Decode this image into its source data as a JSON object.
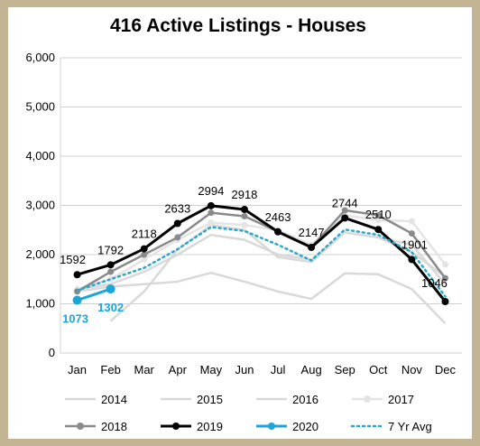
{
  "chart_data": {
    "type": "line",
    "title": "416 Active Listings - Houses",
    "xlabel": "",
    "ylabel": "",
    "categories": [
      "Jan",
      "Feb",
      "Mar",
      "Apr",
      "May",
      "Jun",
      "Jul",
      "Aug",
      "Sep",
      "Oct",
      "Nov",
      "Dec"
    ],
    "ylim": [
      0,
      6000
    ],
    "yticks": [
      0,
      1000,
      2000,
      3000,
      4000,
      5000,
      6000
    ],
    "ytick_labels": [
      "0",
      "1,000",
      "2,000",
      "3,000",
      "4,000",
      "5,000",
      "6,000"
    ],
    "grid": true,
    "legend_position": "bottom",
    "series": [
      {
        "name": "2014",
        "color": "#d9d9d9",
        "marker": false,
        "dotted": false,
        "values": [
          1250,
          1350,
          1400,
          1450,
          1630,
          1450,
          1250,
          1100,
          1620,
          1600,
          1300,
          600
        ]
      },
      {
        "name": "2015",
        "color": "#d9d9d9",
        "marker": false,
        "dotted": false,
        "values": [
          1300,
          1400,
          1650,
          2000,
          2400,
          2300,
          2000,
          1900,
          2450,
          2350,
          2050,
          1550
        ]
      },
      {
        "name": "2016",
        "color": "#d9d9d9",
        "marker": false,
        "dotted": false,
        "values": [
          null,
          650,
          1250,
          2100,
          2600,
          2500,
          1950,
          1850,
          2450,
          2350,
          2200,
          1400
        ]
      },
      {
        "name": "2017",
        "color": "#e4e4e4",
        "marker": true,
        "dotted": false,
        "values": [
          1300,
          1500,
          1900,
          2300,
          2650,
          2600,
          2500,
          2200,
          2800,
          2700,
          2680,
          1800
        ]
      },
      {
        "name": "2018",
        "color": "#8a8a8a",
        "marker": true,
        "dotted": false,
        "values": [
          1250,
          1650,
          2000,
          2350,
          2850,
          2780,
          2470,
          2150,
          2900,
          2800,
          2430,
          1520
        ]
      },
      {
        "name": "2019",
        "color": "#000000",
        "marker": true,
        "dotted": false,
        "values": [
          1592,
          1792,
          2118,
          2633,
          2994,
          2918,
          2463,
          2147,
          2744,
          2510,
          1901,
          1046
        ],
        "labels": [
          "1592",
          "1792",
          "2118",
          "2633",
          "2994",
          "2918",
          "2463",
          "2147",
          "2744",
          "2510",
          "1901",
          "1046"
        ]
      },
      {
        "name": "2020",
        "color": "#1aa6d8",
        "marker": true,
        "dotted": false,
        "values": [
          1073,
          1302,
          null,
          null,
          null,
          null,
          null,
          null,
          null,
          null,
          null,
          null
        ],
        "labels": [
          "1073",
          "1302"
        ]
      },
      {
        "name": "7 Yr Avg",
        "color": "#2aa8c9",
        "marker": false,
        "dotted": true,
        "values": [
          1270,
          1500,
          1730,
          2110,
          2560,
          2480,
          2200,
          1880,
          2510,
          2400,
          2050,
          1150
        ]
      }
    ]
  }
}
